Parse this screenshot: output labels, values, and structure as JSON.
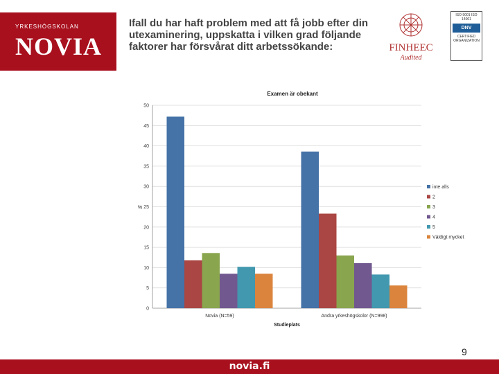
{
  "header": {
    "logo_school": "YRKESHÖGSKOLAN",
    "logo_name": "NOVIA",
    "question": "Ifall du har haft problem med att få jobb efter din utexaminering, uppskatta i vilken grad följande faktorer har försvårat ditt arbetssökande:",
    "finheec_title": "FINHEEC",
    "finheec_sub": "Audited",
    "dnv_top": "ISO 9001 ISO 14001",
    "dnv_mid": "DNV",
    "dnv_bot": "CERTIFIED ORGANIZATION"
  },
  "chart_data": {
    "type": "bar",
    "title": "Examen är obekant",
    "xlabel": "Studieplats",
    "ylabel": "%",
    "ylim": [
      0,
      50
    ],
    "yticks": [
      0,
      5,
      10,
      15,
      20,
      25,
      30,
      35,
      40,
      45,
      50
    ],
    "categories": [
      "Novia (N=59)",
      "Andra yrkeshögskolor (N=998)"
    ],
    "series": [
      {
        "name": "inte alls",
        "color": "#4572a7",
        "values": [
          47.2,
          38.6
        ]
      },
      {
        "name": "2",
        "color": "#aa4643",
        "values": [
          11.8,
          23.3
        ]
      },
      {
        "name": "3",
        "color": "#89a54e",
        "values": [
          13.6,
          13.0
        ]
      },
      {
        "name": "4",
        "color": "#71588f",
        "values": [
          8.5,
          11.1
        ]
      },
      {
        "name": "5",
        "color": "#4198af",
        "values": [
          10.2,
          8.3
        ]
      },
      {
        "name": "Väldigt mycket",
        "color": "#db843d",
        "values": [
          8.5,
          5.6
        ]
      }
    ]
  },
  "page_number": "9",
  "footer": {
    "text": "novia.fi"
  }
}
